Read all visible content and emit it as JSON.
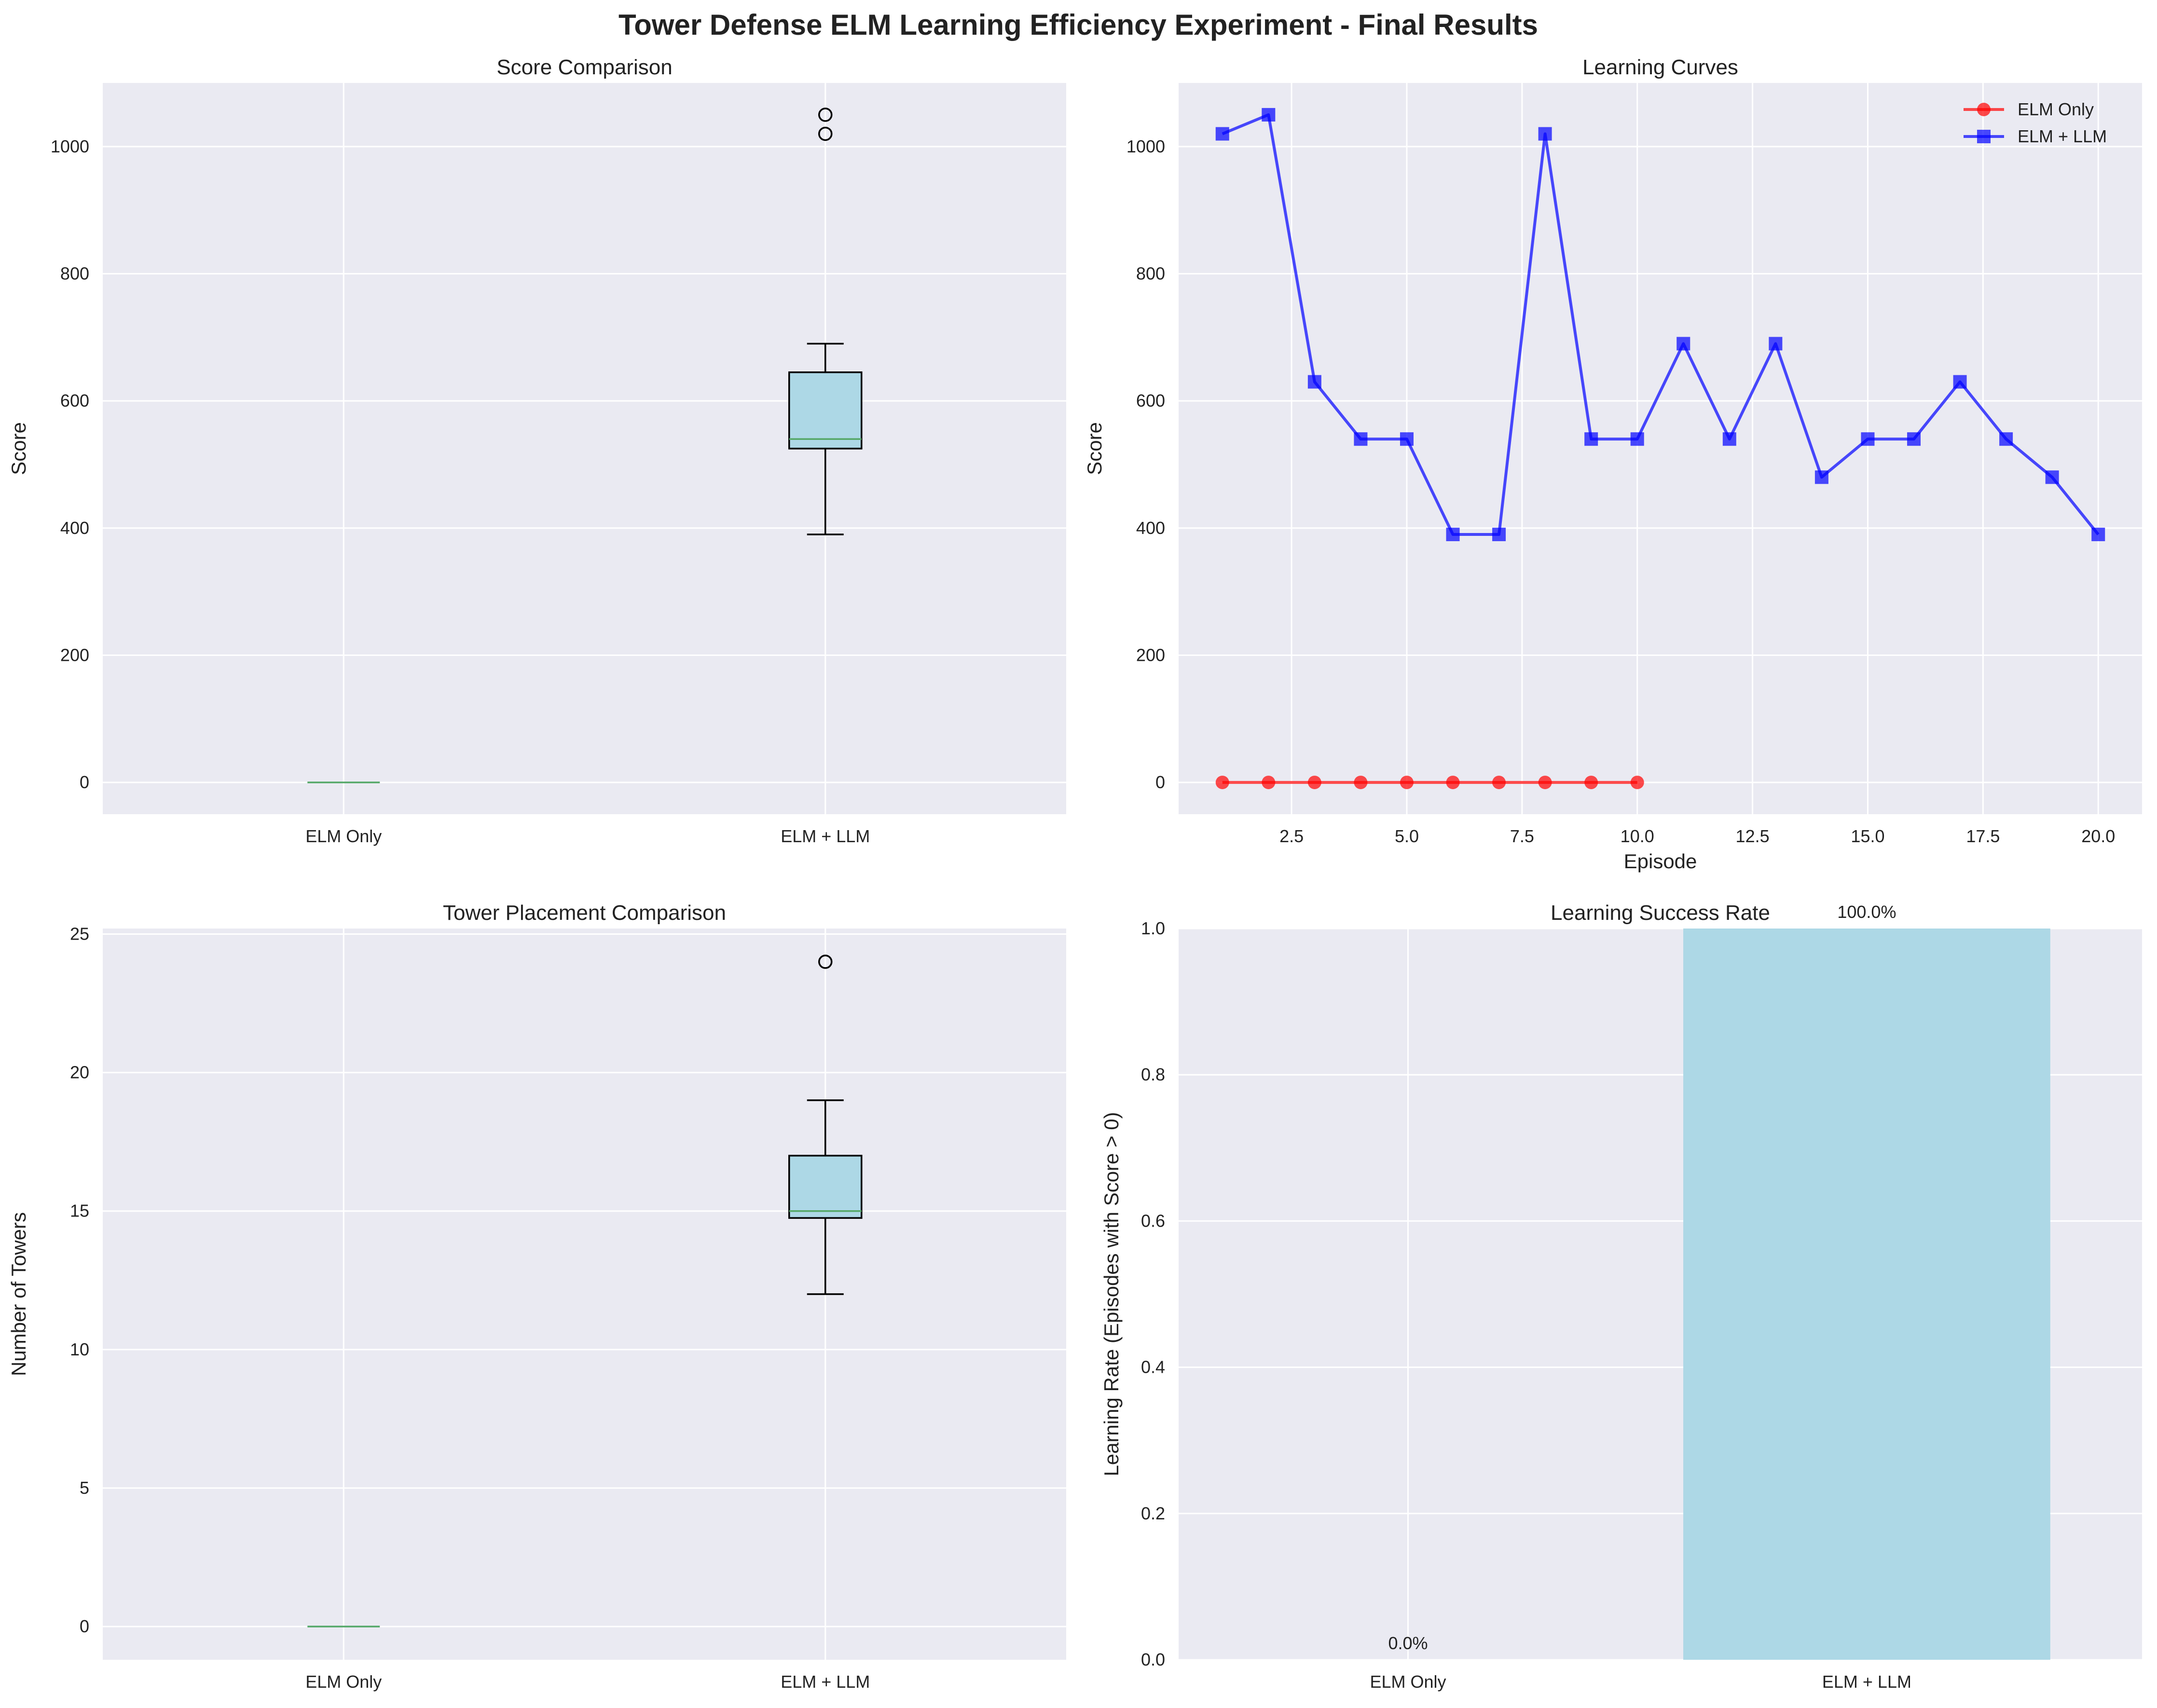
{
  "figure": {
    "suptitle": "Tower Defense ELM Learning Efficiency Experiment - Final Results",
    "background": "#ffffff",
    "axes_background": "#eaeaf2",
    "grid_color": "#ffffff"
  },
  "colors": {
    "box_fill": "#add8e6",
    "median": "#55a868",
    "elm_only": "#ff0000",
    "elm_llm": "#0000ff",
    "bar": "#add8e6"
  },
  "chart_data": [
    {
      "id": "score_box",
      "type": "box",
      "title": "Score Comparison",
      "xlabel": "",
      "ylabel": "Score",
      "categories": [
        "ELM Only",
        "ELM + LLM"
      ],
      "ylim": [
        -50,
        1100
      ],
      "yticks": [
        0,
        200,
        400,
        600,
        800,
        1000
      ],
      "ytick_labels": [
        "0",
        "200",
        "400",
        "600",
        "800",
        "1000"
      ],
      "boxes": [
        {
          "name": "ELM Only",
          "whisker_low": 0,
          "q1": 0,
          "median": 0,
          "q3": 0,
          "whisker_high": 0,
          "outliers": []
        },
        {
          "name": "ELM + LLM",
          "whisker_low": 390,
          "q1": 525,
          "median": 540,
          "q3": 645,
          "whisker_high": 690,
          "outliers": [
            1020,
            1050
          ]
        }
      ],
      "grid": true
    },
    {
      "id": "learning_curves",
      "type": "line",
      "title": "Learning Curves",
      "xlabel": "Episode",
      "ylabel": "Score",
      "xlim": [
        0.05,
        20.95
      ],
      "ylim": [
        -50,
        1100
      ],
      "xticks": [
        2.5,
        5.0,
        7.5,
        10.0,
        12.5,
        15.0,
        17.5,
        20.0
      ],
      "xtick_labels": [
        "2.5",
        "5.0",
        "7.5",
        "10.0",
        "12.5",
        "15.0",
        "17.5",
        "20.0"
      ],
      "yticks": [
        0,
        200,
        400,
        600,
        800,
        1000
      ],
      "ytick_labels": [
        "0",
        "200",
        "400",
        "600",
        "800",
        "1000"
      ],
      "legend_position": "top-right",
      "grid": true,
      "series": [
        {
          "name": "ELM Only",
          "marker": "circle",
          "color": "#ff0000",
          "x": [
            1,
            2,
            3,
            4,
            5,
            6,
            7,
            8,
            9,
            10
          ],
          "y": [
            0,
            0,
            0,
            0,
            0,
            0,
            0,
            0,
            0,
            0
          ]
        },
        {
          "name": "ELM + LLM",
          "marker": "square",
          "color": "#0000ff",
          "x": [
            1,
            2,
            3,
            4,
            5,
            6,
            7,
            8,
            9,
            10,
            11,
            12,
            13,
            14,
            15,
            16,
            17,
            18,
            19,
            20
          ],
          "y": [
            1020,
            1050,
            630,
            540,
            540,
            390,
            390,
            1020,
            540,
            540,
            690,
            540,
            690,
            480,
            540,
            540,
            630,
            540,
            480,
            390
          ]
        }
      ]
    },
    {
      "id": "tower_box",
      "type": "box",
      "title": "Tower Placement Comparison",
      "xlabel": "",
      "ylabel": "Number of Towers",
      "categories": [
        "ELM Only",
        "ELM + LLM"
      ],
      "ylim": [
        -1.2,
        25.2
      ],
      "yticks": [
        0,
        5,
        10,
        15,
        20,
        25
      ],
      "ytick_labels": [
        "0",
        "5",
        "10",
        "15",
        "20",
        "25"
      ],
      "boxes": [
        {
          "name": "ELM Only",
          "whisker_low": 0,
          "q1": 0,
          "median": 0,
          "q3": 0,
          "whisker_high": 0,
          "outliers": []
        },
        {
          "name": "ELM + LLM",
          "whisker_low": 12,
          "q1": 14.75,
          "median": 15,
          "q3": 17,
          "whisker_high": 19,
          "outliers": [
            24
          ]
        }
      ],
      "grid": true
    },
    {
      "id": "success_bar",
      "type": "bar",
      "title": "Learning Success Rate",
      "xlabel": "",
      "ylabel": "Learning Rate (Episodes with Score > 0)",
      "categories": [
        "ELM Only",
        "ELM + LLM"
      ],
      "values": [
        0.0,
        1.0
      ],
      "value_labels": [
        "0.0%",
        "100.0%"
      ],
      "ylim": [
        0,
        1.0
      ],
      "yticks": [
        0.0,
        0.2,
        0.4,
        0.6,
        0.8,
        1.0
      ],
      "ytick_labels": [
        "0.0",
        "0.2",
        "0.4",
        "0.6",
        "0.8",
        "1.0"
      ],
      "grid": true
    }
  ]
}
